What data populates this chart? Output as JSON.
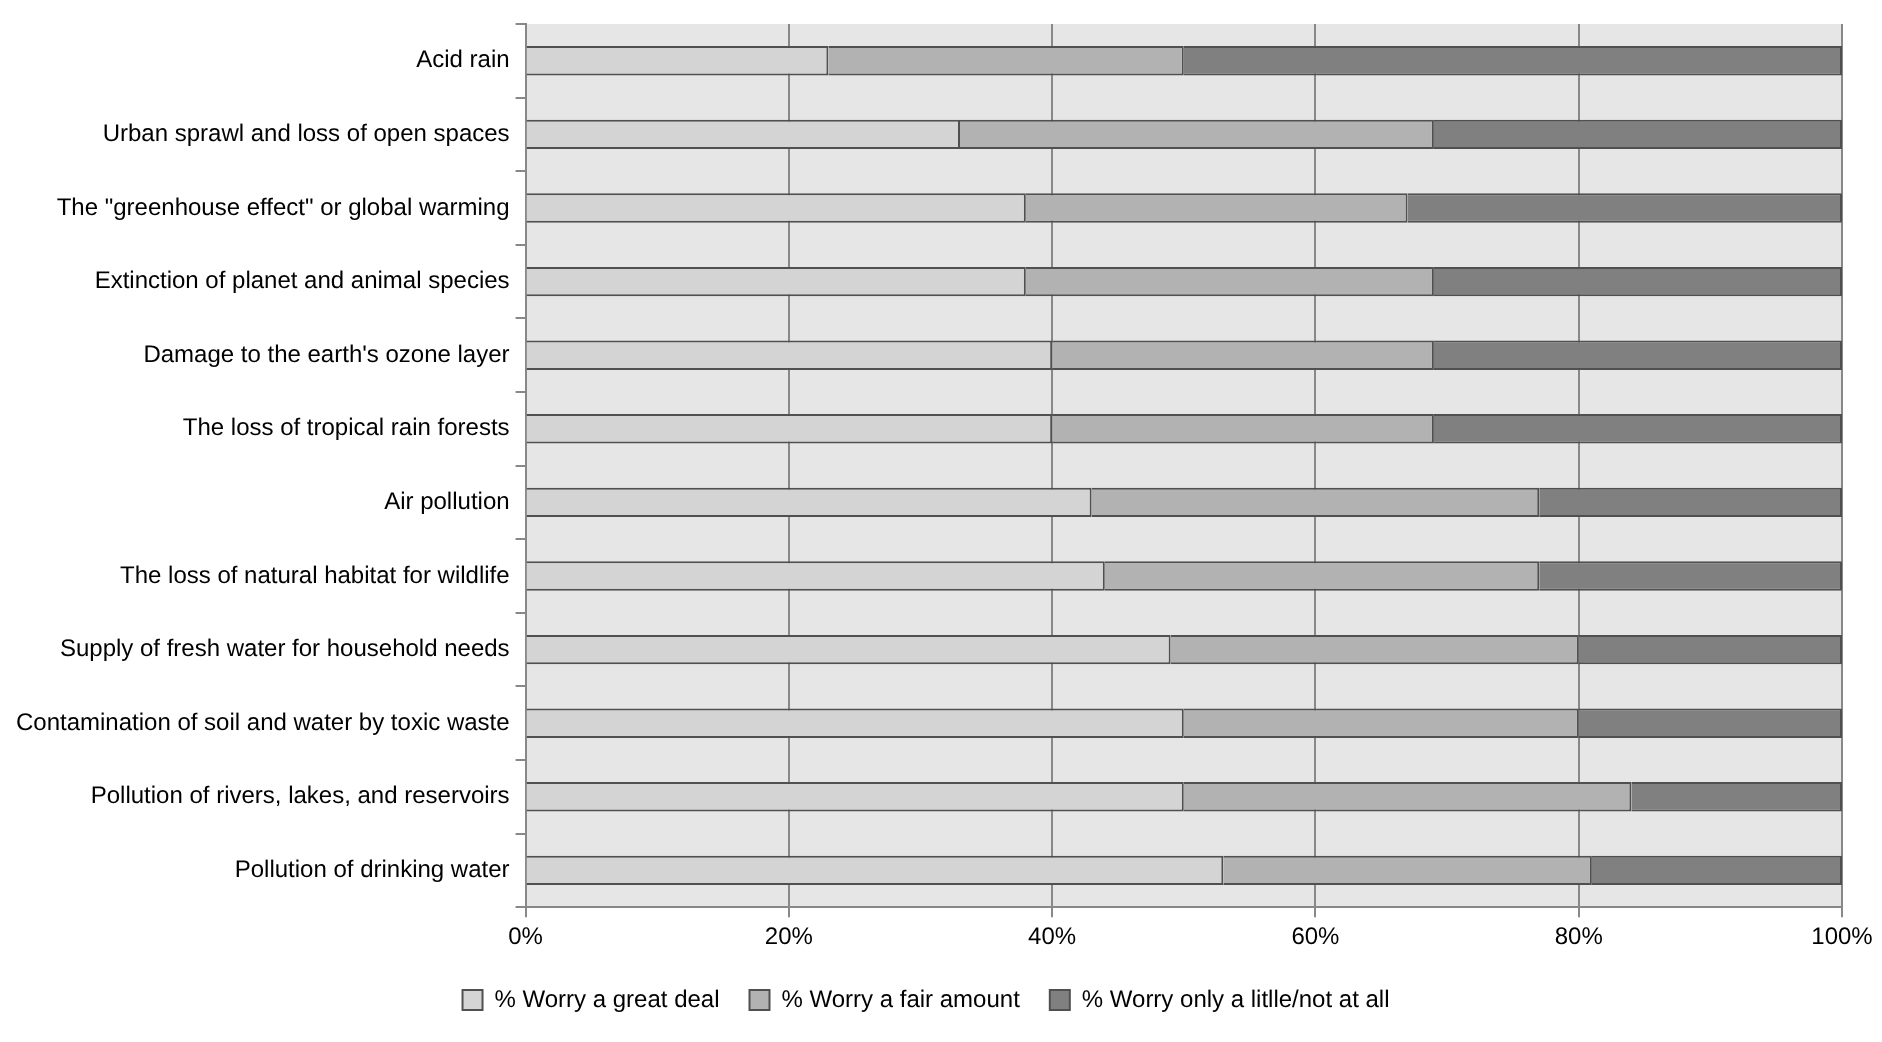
{
  "chart_data": {
    "type": "bar",
    "orientation": "horizontal",
    "stacked": true,
    "categories": [
      "Acid rain",
      "Urban sprawl and loss of open spaces",
      "The \"greenhouse effect\" or global warming",
      "Extinction of planet and animal species",
      "Damage to the earth's ozone layer",
      "The loss of tropical rain forests",
      "Air pollution",
      "The loss of natural habitat for wildlife",
      "Supply of fresh water for household needs",
      "Contamination of soil and water by toxic waste",
      "Pollution of rivers, lakes, and reservoirs",
      "Pollution of drinking water"
    ],
    "series": [
      {
        "name": "% Worry a great deal",
        "color": "#d4d4d4",
        "values": [
          23,
          33,
          38,
          38,
          40,
          40,
          43,
          44,
          49,
          50,
          50,
          53
        ]
      },
      {
        "name": "% Worry a fair amount",
        "color": "#b2b2b2",
        "values": [
          27,
          36,
          29,
          31,
          29,
          29,
          34,
          33,
          31,
          30,
          34,
          28
        ]
      },
      {
        "name": "% Worry only a litlle/not at all",
        "color": "#808080",
        "values": [
          50,
          31,
          33,
          31,
          31,
          31,
          23,
          23,
          20,
          20,
          16,
          19
        ]
      }
    ],
    "xlim": [
      0,
      100
    ],
    "xticks": [
      {
        "value": 0,
        "label": "0%"
      },
      {
        "value": 20,
        "label": "20%"
      },
      {
        "value": 40,
        "label": "40%"
      },
      {
        "value": 60,
        "label": "60%"
      },
      {
        "value": 80,
        "label": "80%"
      },
      {
        "value": 100,
        "label": "100%"
      }
    ],
    "grid": "x",
    "legend": "bottom"
  }
}
